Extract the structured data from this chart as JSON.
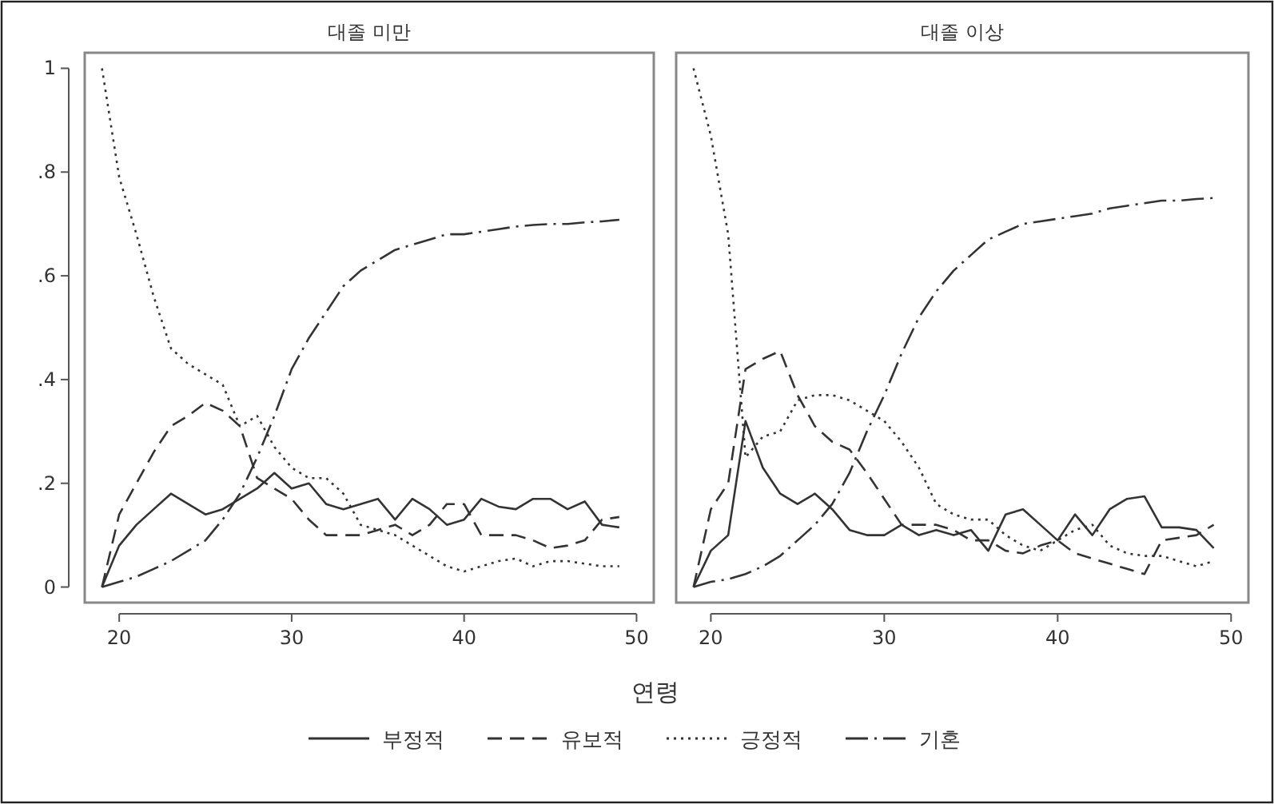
{
  "chart_data": [
    {
      "type": "line",
      "title": "대졸 미만",
      "xlabel": "연령",
      "x": [
        19,
        20,
        21,
        22,
        23,
        24,
        25,
        26,
        27,
        28,
        29,
        30,
        31,
        32,
        33,
        34,
        35,
        36,
        37,
        38,
        39,
        40,
        41,
        42,
        43,
        44,
        45,
        46,
        47,
        48,
        49
      ],
      "xlim": [
        18,
        51
      ],
      "ylim": [
        -0.03,
        1.03
      ],
      "xticks": [
        20,
        30,
        40,
        50
      ],
      "yticks": [
        {
          "value": 0,
          "label": "0"
        },
        {
          "value": 0.2,
          "label": ".2"
        },
        {
          "value": 0.4,
          "label": ".4"
        },
        {
          "value": 0.6,
          "label": ".6"
        },
        {
          "value": 0.8,
          "label": ".8"
        },
        {
          "value": 1,
          "label": "1"
        }
      ],
      "grid": false,
      "legend": "bottom",
      "marker": "none",
      "series": [
        {
          "name": "부정적",
          "color": "#333333",
          "line_style": "solid",
          "values": [
            0,
            0.08,
            0.12,
            0.15,
            0.18,
            0.16,
            0.14,
            0.15,
            0.17,
            0.19,
            0.22,
            0.19,
            0.2,
            0.16,
            0.15,
            0.16,
            0.17,
            0.13,
            0.17,
            0.15,
            0.12,
            0.13,
            0.17,
            0.155,
            0.15,
            0.17,
            0.17,
            0.15,
            0.165,
            0.12,
            0.115
          ]
        },
        {
          "name": "유보적",
          "color": "#333333",
          "line_style": "dashed",
          "values": [
            0,
            0.14,
            0.2,
            0.26,
            0.31,
            0.33,
            0.355,
            0.34,
            0.31,
            0.21,
            0.19,
            0.17,
            0.13,
            0.1,
            0.1,
            0.1,
            0.11,
            0.12,
            0.1,
            0.12,
            0.16,
            0.16,
            0.1,
            0.1,
            0.1,
            0.09,
            0.075,
            0.08,
            0.09,
            0.13,
            0.135
          ]
        },
        {
          "name": "긍정적",
          "color": "#333333",
          "line_style": "dotted",
          "values": [
            1,
            0.79,
            0.68,
            0.56,
            0.46,
            0.43,
            0.41,
            0.39,
            0.31,
            0.33,
            0.27,
            0.23,
            0.21,
            0.21,
            0.18,
            0.12,
            0.11,
            0.1,
            0.08,
            0.06,
            0.04,
            0.03,
            0.04,
            0.05,
            0.055,
            0.04,
            0.05,
            0.05,
            0.045,
            0.04,
            0.04
          ]
        },
        {
          "name": "기혼",
          "color": "#333333",
          "line_style": "dashdot",
          "values": [
            0,
            0.01,
            0.02,
            0.035,
            0.05,
            0.07,
            0.09,
            0.13,
            0.18,
            0.25,
            0.33,
            0.42,
            0.48,
            0.53,
            0.58,
            0.61,
            0.63,
            0.65,
            0.66,
            0.67,
            0.68,
            0.68,
            0.685,
            0.69,
            0.695,
            0.698,
            0.7,
            0.7,
            0.703,
            0.705,
            0.708
          ]
        }
      ]
    },
    {
      "type": "line",
      "title": "대졸 이상",
      "x": [
        19,
        20,
        21,
        22,
        23,
        24,
        25,
        26,
        27,
        28,
        29,
        30,
        31,
        32,
        33,
        34,
        35,
        36,
        37,
        38,
        39,
        40,
        41,
        42,
        43,
        44,
        45,
        46,
        47,
        48,
        49
      ],
      "xlim": [
        18,
        51
      ],
      "ylim": [
        -0.03,
        1.03
      ],
      "xticks": [
        20,
        30,
        40,
        50
      ],
      "tick_labels": "x",
      "grid": false,
      "marker": "none",
      "series": [
        {
          "color": "#333333",
          "line_style": "solid",
          "values": [
            0,
            0.07,
            0.1,
            0.32,
            0.23,
            0.18,
            0.16,
            0.18,
            0.15,
            0.11,
            0.1,
            0.1,
            0.12,
            0.1,
            0.11,
            0.1,
            0.11,
            0.07,
            0.14,
            0.15,
            0.12,
            0.09,
            0.14,
            0.1,
            0.15,
            0.17,
            0.175,
            0.115,
            0.115,
            0.11,
            0.075
          ]
        },
        {
          "color": "#333333",
          "line_style": "dashed",
          "values": [
            0,
            0.15,
            0.2,
            0.42,
            0.44,
            0.455,
            0.37,
            0.31,
            0.28,
            0.265,
            0.22,
            0.17,
            0.12,
            0.12,
            0.12,
            0.11,
            0.09,
            0.09,
            0.07,
            0.065,
            0.08,
            0.09,
            0.065,
            0.055,
            0.045,
            0.035,
            0.025,
            0.09,
            0.095,
            0.1,
            0.12
          ]
        },
        {
          "color": "#333333",
          "line_style": "dotted",
          "values": [
            1,
            0.87,
            0.68,
            0.25,
            0.29,
            0.3,
            0.36,
            0.37,
            0.37,
            0.36,
            0.34,
            0.32,
            0.28,
            0.23,
            0.16,
            0.14,
            0.13,
            0.13,
            0.1,
            0.08,
            0.07,
            0.09,
            0.11,
            0.12,
            0.08,
            0.065,
            0.06,
            0.06,
            0.05,
            0.04,
            0.05
          ]
        },
        {
          "color": "#333333",
          "line_style": "dashdot",
          "values": [
            0,
            0.01,
            0.015,
            0.025,
            0.04,
            0.06,
            0.09,
            0.12,
            0.16,
            0.22,
            0.3,
            0.37,
            0.45,
            0.52,
            0.57,
            0.61,
            0.64,
            0.67,
            0.685,
            0.7,
            0.705,
            0.71,
            0.715,
            0.72,
            0.73,
            0.735,
            0.74,
            0.745,
            0.745,
            0.748,
            0.75
          ]
        }
      ]
    }
  ]
}
